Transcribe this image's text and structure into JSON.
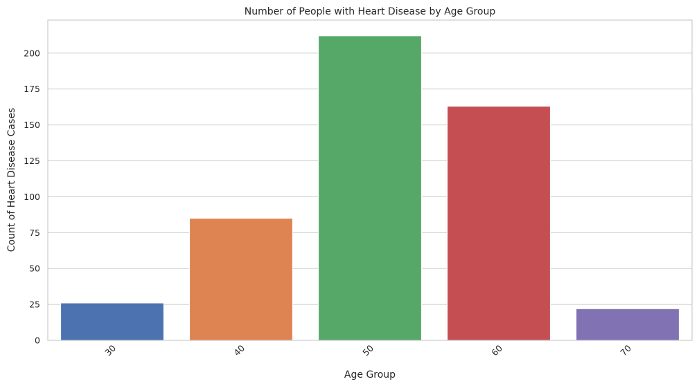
{
  "chart_data": {
    "type": "bar",
    "title": "Number of People with Heart Disease by Age Group",
    "xlabel": "Age Group",
    "ylabel": "Count of Heart Disease Cases",
    "categories": [
      "30",
      "40",
      "50",
      "60",
      "70"
    ],
    "values": [
      26,
      85,
      212,
      163,
      22
    ],
    "colors": [
      "#4c72b0",
      "#dd8452",
      "#55a868",
      "#c44e52",
      "#8172b3"
    ],
    "ylim": [
      0,
      223
    ],
    "yticks": [
      0,
      25,
      50,
      75,
      100,
      125,
      150,
      175,
      200
    ],
    "grid": true,
    "legend": "none"
  }
}
